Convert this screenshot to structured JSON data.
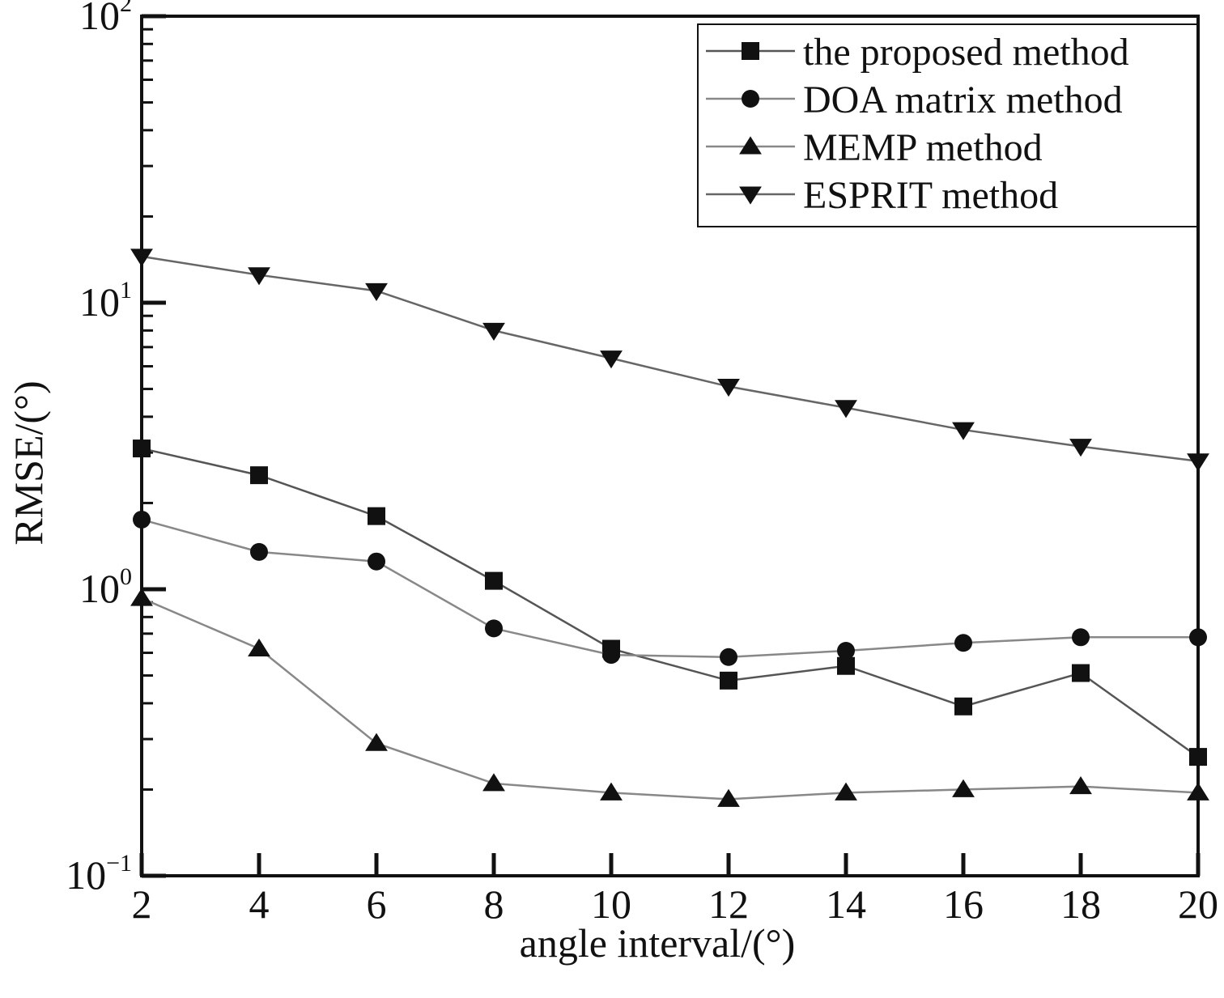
{
  "chart_data": {
    "type": "line",
    "title": "",
    "xlabel": "angle interval/(°)",
    "ylabel": "RMSE/(°)",
    "xlim": [
      2,
      20
    ],
    "ylim": [
      0.1,
      100
    ],
    "yscale": "log",
    "grid": false,
    "legend_position": "top-right",
    "x": [
      2,
      4,
      6,
      8,
      10,
      12,
      14,
      16,
      18,
      20
    ],
    "x_ticks": [
      "2",
      "4",
      "6",
      "8",
      "10",
      "12",
      "14",
      "16",
      "18",
      "20"
    ],
    "y_ticks": [
      {
        "value": 100,
        "base": "10",
        "exp": "2"
      },
      {
        "value": 10,
        "base": "10",
        "exp": "1"
      },
      {
        "value": 1,
        "base": "10",
        "exp": "0"
      },
      {
        "value": 0.1,
        "base": "10",
        "exp": "−1"
      }
    ],
    "series": [
      {
        "name": "the proposed method",
        "marker": "square",
        "color": "#111111",
        "line_color": "#555555",
        "values": [
          3.1,
          2.5,
          1.8,
          1.07,
          0.62,
          0.48,
          0.54,
          0.39,
          0.51,
          0.26
        ]
      },
      {
        "name": "DOA matrix method",
        "marker": "circle",
        "color": "#111111",
        "line_color": "#888888",
        "values": [
          1.75,
          1.35,
          1.25,
          0.73,
          0.59,
          0.58,
          0.61,
          0.65,
          0.68,
          0.68
        ]
      },
      {
        "name": "MEMP method",
        "marker": "triangle-up",
        "color": "#111111",
        "line_color": "#888888",
        "values": [
          0.93,
          0.62,
          0.29,
          0.21,
          0.195,
          0.185,
          0.195,
          0.2,
          0.205,
          0.195
        ]
      },
      {
        "name": "ESPRIT method",
        "marker": "triangle-down",
        "color": "#111111",
        "line_color": "#666666",
        "values": [
          14.5,
          12.5,
          11,
          8,
          6.4,
          5.1,
          4.3,
          3.6,
          3.15,
          2.8
        ]
      }
    ]
  }
}
